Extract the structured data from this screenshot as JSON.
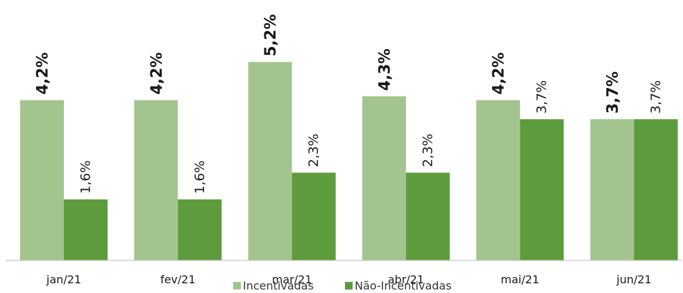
{
  "colors": {
    "incentivadas": "#a3c48f",
    "nao_incentivadas": "#5e9b3d",
    "axis": "#c8c8c8"
  },
  "chart_data": {
    "type": "bar",
    "categories": [
      "jan/21",
      "fev/21",
      "mar/21",
      "abr/21",
      "mai/21",
      "jun/21"
    ],
    "series": [
      {
        "name": "Incentivadas",
        "values": [
          4.2,
          4.2,
          5.2,
          4.3,
          4.2,
          3.7
        ],
        "labels": [
          "4,2%",
          "4,2%",
          "5,2%",
          "4,3%",
          "4,2%",
          "3,7%"
        ]
      },
      {
        "name": "Não-Incentivadas",
        "values": [
          1.6,
          1.6,
          2.3,
          2.3,
          3.7,
          3.7
        ],
        "labels": [
          "1,6%",
          "1,6%",
          "2,3%",
          "2,3%",
          "3,7%",
          "3,7%"
        ]
      }
    ],
    "ylim": [
      0,
      5.2
    ],
    "grid": false,
    "legend": "bottom-center"
  }
}
